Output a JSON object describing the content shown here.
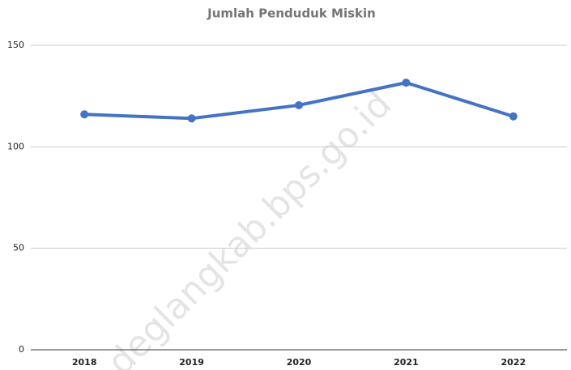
{
  "chart_data": {
    "type": "line",
    "title": "Jumlah Penduduk Miskin",
    "categories": [
      "2018",
      "2019",
      "2020",
      "2021",
      "2022"
    ],
    "series": [
      {
        "name": "Jumlah Penduduk Miskin",
        "color": "#4472c4",
        "values": [
          116,
          114,
          120.5,
          131.6,
          115
        ]
      }
    ],
    "ylim": [
      0,
      150
    ],
    "yticks": [
      0,
      50,
      100,
      150
    ],
    "grid": true,
    "watermark": "deglangkab.bps.go.id"
  }
}
